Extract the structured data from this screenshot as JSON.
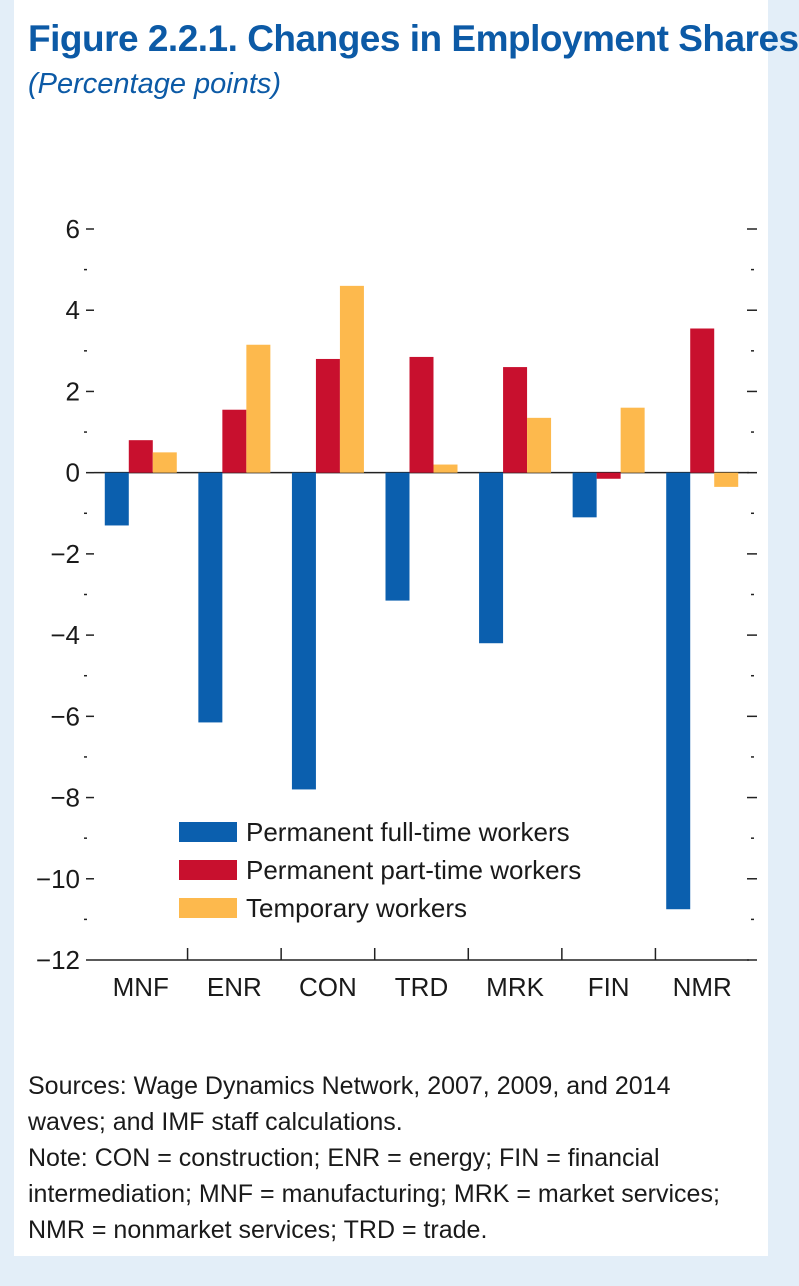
{
  "header": {
    "title": "Figure 2.2.1.  Changes in Employment Shares",
    "subtitle": "(Percentage points)"
  },
  "chart_data": {
    "type": "bar",
    "title": "Figure 2.2.1.  Changes in Employment Shares",
    "subtitle": "(Percentage points)",
    "xlabel": "",
    "ylabel": "",
    "categories": [
      "MNF",
      "ENR",
      "CON",
      "TRD",
      "MRK",
      "FIN",
      "NMR"
    ],
    "series": [
      {
        "name": "Permanent full-time workers",
        "color": "#0b5fae",
        "values": [
          -1.3,
          -6.15,
          -7.8,
          -3.15,
          -4.2,
          -1.1,
          -10.75
        ]
      },
      {
        "name": "Permanent part-time workers",
        "color": "#c8102e",
        "values": [
          0.8,
          1.55,
          2.8,
          2.85,
          2.6,
          -0.15,
          3.55
        ]
      },
      {
        "name": "Temporary workers",
        "color": "#fdb94d",
        "values": [
          0.5,
          3.15,
          4.6,
          0.2,
          1.35,
          1.6,
          -0.35
        ]
      }
    ],
    "ylim": [
      -12,
      6
    ],
    "yticks": [
      6,
      4,
      2,
      0,
      -2,
      -4,
      -6,
      -8,
      -10,
      -12
    ],
    "ytick_labels": [
      "6",
      "4",
      "2",
      "0",
      "−2",
      "−4",
      "−6",
      "−8",
      "−10",
      "−12"
    ],
    "legend_position": "lower-center",
    "grid": false
  },
  "notes": {
    "sources": "Sources: Wage Dynamics Network, 2007, 2009, and 2014 waves; and IMF staff calculations.",
    "note": "Note: CON = construction; ENR = energy; FIN = financial intermediation; MNF = manufacturing; MRK = market services; NMR = nonmarket services; TRD = trade."
  }
}
